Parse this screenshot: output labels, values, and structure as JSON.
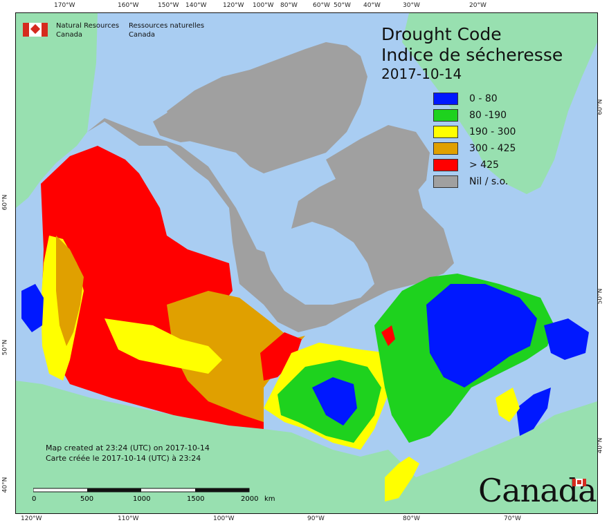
{
  "map": {
    "title_en": "Drought Code",
    "title_fr": "Indice de sécheresse",
    "date": "2017-10-14",
    "ministry_en": [
      "Natural Resources",
      "Canada"
    ],
    "ministry_fr": [
      "Ressources naturelles",
      "Canada"
    ],
    "credit_en": "Map created at 23:24 (UTC) on 2017-10-14",
    "credit_fr": "Carte créée le 2017-10-14 (UTC) à 23:24",
    "wordmark": "Canada"
  },
  "legend": [
    {
      "label": "0 - 80",
      "color": "#0018ff"
    },
    {
      "label": "80 -190",
      "color": "#1ed21e"
    },
    {
      "label": "190 - 300",
      "color": "#ffff00"
    },
    {
      "label": "300 - 425",
      "color": "#e0a000"
    },
    {
      "label": "> 425",
      "color": "#ff0000"
    },
    {
      "label": "Nil / s.o.",
      "color": "#a0a0a0"
    }
  ],
  "colors": {
    "ocean": "#a9cdf2",
    "land": "#98e0b0",
    "nodata": "#a0a0a0",
    "flag": "#d52b1e"
  },
  "scale": {
    "ticks": [
      "0",
      "500",
      "1000",
      "1500",
      "2000"
    ],
    "unit": "km"
  },
  "axes": {
    "top": [
      "170°W",
      "160°W",
      "150°W",
      "140°W",
      "120°W",
      "100°W",
      "80°W",
      "60°W",
      "50°W",
      "40°W",
      "30°W",
      "20°W"
    ],
    "bottom": [
      "120°W",
      "110°W",
      "100°W",
      "90°W",
      "80°W",
      "70°W"
    ],
    "left": [
      "60°N",
      "50°N",
      "40°N"
    ],
    "right": [
      "60°N",
      "50°N",
      "40°N"
    ]
  }
}
